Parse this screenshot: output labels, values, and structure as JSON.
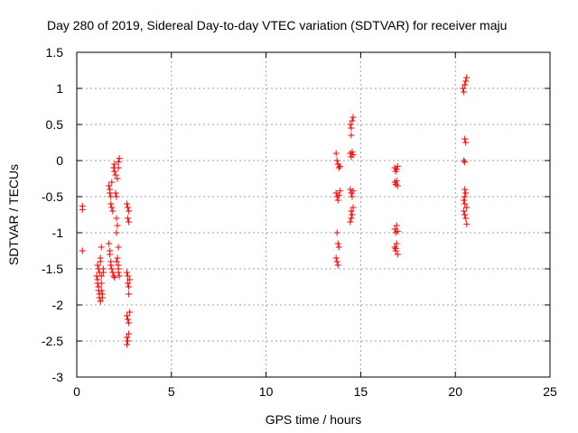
{
  "chart_data": {
    "type": "scatter",
    "title": "Day 280 of 2019, Sidereal Day-to-day VTEC variation (SDTVAR) for receiver maju",
    "xlabel": "GPS time / hours",
    "ylabel": "SDTVAR / TECUs",
    "xlim": [
      0,
      25
    ],
    "ylim": [
      -3,
      1.5
    ],
    "xticks": [
      0,
      5,
      10,
      15,
      20,
      25
    ],
    "xtick_labels": [
      "0",
      "5",
      "10",
      "15",
      "20",
      "25"
    ],
    "yticks": [
      -3,
      -2.5,
      -2,
      -1.5,
      -1,
      -0.5,
      0,
      0.5,
      1,
      1.5
    ],
    "ytick_labels": [
      "-3",
      "-2.5",
      "-2",
      "-1.5",
      "-1",
      "-0.5",
      "0",
      "0.5",
      "1",
      "1.5"
    ],
    "grid": true,
    "marker": "+",
    "color": "#ff0000",
    "series": [
      {
        "name": "SDTVAR",
        "points": [
          [
            0.3,
            -0.63
          ],
          [
            0.3,
            -0.68
          ],
          [
            0.3,
            -1.25
          ],
          [
            1.05,
            -1.6
          ],
          [
            1.1,
            -1.65
          ],
          [
            1.1,
            -1.7
          ],
          [
            1.15,
            -1.75
          ],
          [
            1.15,
            -1.8
          ],
          [
            1.2,
            -1.85
          ],
          [
            1.2,
            -1.9
          ],
          [
            1.25,
            -1.95
          ],
          [
            1.1,
            -1.45
          ],
          [
            1.15,
            -1.5
          ],
          [
            1.2,
            -1.55
          ],
          [
            1.25,
            -1.4
          ],
          [
            1.25,
            -1.35
          ],
          [
            1.3,
            -1.6
          ],
          [
            1.3,
            -1.7
          ],
          [
            1.3,
            -1.8
          ],
          [
            1.35,
            -1.85
          ],
          [
            1.35,
            -1.9
          ],
          [
            1.3,
            -1.2
          ],
          [
            1.4,
            -1.5
          ],
          [
            1.4,
            -1.55
          ],
          [
            1.7,
            -0.35
          ],
          [
            1.75,
            -0.4
          ],
          [
            1.75,
            -0.45
          ],
          [
            1.8,
            -0.5
          ],
          [
            1.8,
            -0.6
          ],
          [
            1.85,
            -0.65
          ],
          [
            1.7,
            -1.15
          ],
          [
            1.75,
            -1.25
          ],
          [
            1.75,
            -1.3
          ],
          [
            1.8,
            -1.4
          ],
          [
            1.8,
            -1.45
          ],
          [
            1.85,
            -1.5
          ],
          [
            1.85,
            -0.3
          ],
          [
            1.9,
            -0.7
          ],
          [
            1.9,
            -1.55
          ],
          [
            1.95,
            -1.6
          ],
          [
            1.95,
            -0.1
          ],
          [
            2.0,
            -0.05
          ],
          [
            2.0,
            -0.15
          ],
          [
            2.05,
            -0.2
          ],
          [
            2.05,
            -0.45
          ],
          [
            2.1,
            -0.5
          ],
          [
            2.1,
            -0.8
          ],
          [
            2.1,
            -1.0
          ],
          [
            2.15,
            -0.9
          ],
          [
            2.15,
            -1.35
          ],
          [
            2.2,
            -1.45
          ],
          [
            2.2,
            -1.5
          ],
          [
            2.2,
            -1.55
          ],
          [
            2.25,
            -1.6
          ],
          [
            2.25,
            0.03
          ],
          [
            2.2,
            -0.02
          ],
          [
            2.2,
            -0.1
          ],
          [
            2.15,
            -0.25
          ],
          [
            2.0,
            -1.62
          ],
          [
            2.1,
            -1.4
          ],
          [
            2.2,
            -1.2
          ],
          [
            2.65,
            -0.6
          ],
          [
            2.7,
            -0.65
          ],
          [
            2.7,
            -0.8
          ],
          [
            2.75,
            -0.85
          ],
          [
            2.75,
            -0.7
          ],
          [
            2.65,
            -1.55
          ],
          [
            2.7,
            -1.6
          ],
          [
            2.7,
            -1.7
          ],
          [
            2.75,
            -1.75
          ],
          [
            2.75,
            -1.85
          ],
          [
            2.8,
            -1.65
          ],
          [
            2.65,
            -2.15
          ],
          [
            2.7,
            -2.2
          ],
          [
            2.75,
            -2.25
          ],
          [
            2.65,
            -2.45
          ],
          [
            2.7,
            -2.5
          ],
          [
            2.75,
            -2.4
          ],
          [
            2.65,
            -2.55
          ],
          [
            2.8,
            -2.1
          ],
          [
            13.7,
            0.1
          ],
          [
            13.75,
            0.0
          ],
          [
            13.8,
            -0.05
          ],
          [
            13.85,
            -0.1
          ],
          [
            13.9,
            -0.08
          ],
          [
            13.7,
            -0.45
          ],
          [
            13.75,
            -0.5
          ],
          [
            13.8,
            -0.55
          ],
          [
            13.85,
            -0.48
          ],
          [
            13.9,
            -0.42
          ],
          [
            13.75,
            -1.0
          ],
          [
            13.8,
            -1.15
          ],
          [
            13.85,
            -1.2
          ],
          [
            13.75,
            -1.4
          ],
          [
            13.8,
            -1.45
          ],
          [
            13.7,
            -1.35
          ],
          [
            14.45,
            0.5
          ],
          [
            14.5,
            0.45
          ],
          [
            14.55,
            0.55
          ],
          [
            14.6,
            0.6
          ],
          [
            14.5,
            0.35
          ],
          [
            14.45,
            0.1
          ],
          [
            14.5,
            0.05
          ],
          [
            14.55,
            0.12
          ],
          [
            14.6,
            0.08
          ],
          [
            14.45,
            -0.4
          ],
          [
            14.5,
            -0.45
          ],
          [
            14.55,
            -0.5
          ],
          [
            14.6,
            -0.42
          ],
          [
            14.5,
            -0.7
          ],
          [
            14.55,
            -0.75
          ],
          [
            14.6,
            -0.65
          ],
          [
            14.45,
            -0.85
          ],
          [
            14.5,
            -0.8
          ],
          [
            16.8,
            -0.1
          ],
          [
            16.85,
            -0.15
          ],
          [
            16.9,
            -0.12
          ],
          [
            16.95,
            -0.08
          ],
          [
            16.8,
            -0.3
          ],
          [
            16.85,
            -0.33
          ],
          [
            16.9,
            -0.28
          ],
          [
            16.95,
            -0.35
          ],
          [
            16.8,
            -0.95
          ],
          [
            16.85,
            -1.0
          ],
          [
            16.9,
            -0.9
          ],
          [
            16.95,
            -0.98
          ],
          [
            16.8,
            -1.2
          ],
          [
            16.85,
            -1.25
          ],
          [
            16.9,
            -1.15
          ],
          [
            16.95,
            -1.3
          ],
          [
            16.85,
            -1.22
          ],
          [
            20.4,
            1.0
          ],
          [
            20.45,
            0.95
          ],
          [
            20.5,
            1.05
          ],
          [
            20.55,
            1.1
          ],
          [
            20.6,
            1.15
          ],
          [
            20.5,
            0.3
          ],
          [
            20.55,
            0.25
          ],
          [
            20.45,
            0.0
          ],
          [
            20.5,
            -0.02
          ],
          [
            20.5,
            -0.4
          ],
          [
            20.55,
            -0.45
          ],
          [
            20.45,
            -0.55
          ],
          [
            20.5,
            -0.6
          ],
          [
            20.6,
            -0.65
          ],
          [
            20.45,
            -0.7
          ],
          [
            20.5,
            -0.75
          ],
          [
            20.55,
            -0.8
          ],
          [
            20.6,
            -0.88
          ],
          [
            20.5,
            -0.5
          ]
        ]
      }
    ]
  }
}
